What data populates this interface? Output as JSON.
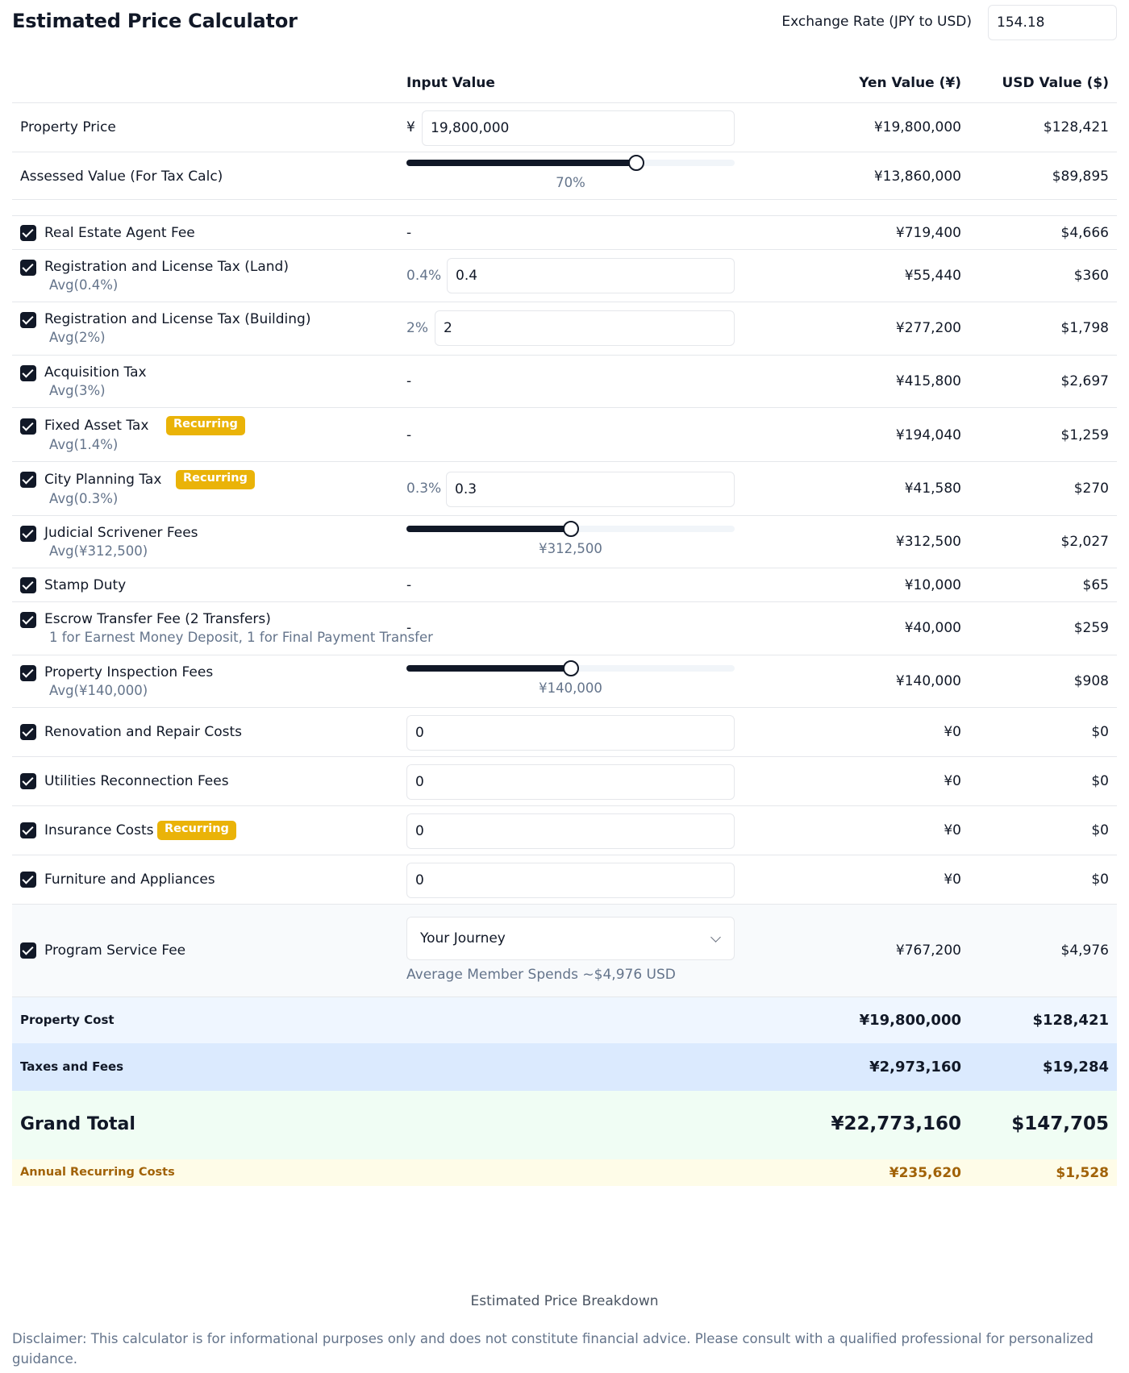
{
  "header": {
    "title": "Estimated Price Calculator",
    "exchange_label": "Exchange Rate (JPY to USD)",
    "exchange_value": "154.18"
  },
  "columns": {
    "input": "Input Value",
    "yen": "Yen Value (¥)",
    "usd": "USD Value ($)"
  },
  "property_price": {
    "label": "Property Price",
    "currency_symbol": "¥",
    "input_value": "19,800,000",
    "yen": "¥19,800,000",
    "usd": "$128,421"
  },
  "assessed_value": {
    "label": "Assessed Value (For Tax Calc)",
    "slider_value": 0.7,
    "slider_label": "70%",
    "yen": "¥13,860,000",
    "usd": "$89,895"
  },
  "badge_text": "Recurring",
  "dash": "-",
  "items": {
    "agent_fee": {
      "label": "Real Estate Agent Fee",
      "checked": true,
      "yen": "¥719,400",
      "usd": "$4,666"
    },
    "reg_land": {
      "label": "Registration and License Tax (Land)",
      "sub": "Avg(0.4%)",
      "checked": true,
      "pct": "0.4%",
      "input_value": "0.4",
      "yen": "¥55,440",
      "usd": "$360"
    },
    "reg_building": {
      "label": "Registration and License Tax (Building)",
      "sub": "Avg(2%)",
      "checked": true,
      "pct": "2%",
      "input_value": "2",
      "yen": "¥277,200",
      "usd": "$1,798"
    },
    "acquisition_tax": {
      "label": "Acquisition Tax",
      "sub": "Avg(3%)",
      "checked": true,
      "yen": "¥415,800",
      "usd": "$2,697"
    },
    "fixed_asset_tax": {
      "label": "Fixed Asset Tax",
      "sub": "Avg(1.4%)",
      "checked": true,
      "recurring": true,
      "yen": "¥194,040",
      "usd": "$1,259"
    },
    "city_planning_tax": {
      "label": "City Planning Tax",
      "sub": "Avg(0.3%)",
      "checked": true,
      "recurring": true,
      "pct": "0.3%",
      "input_value": "0.3",
      "yen": "¥41,580",
      "usd": "$270"
    },
    "scrivener": {
      "label": "Judicial Scrivener Fees",
      "sub": "Avg(¥312,500)",
      "checked": true,
      "slider_value": 0.5,
      "slider_label": "¥312,500",
      "yen": "¥312,500",
      "usd": "$2,027"
    },
    "stamp_duty": {
      "label": "Stamp Duty",
      "checked": true,
      "yen": "¥10,000",
      "usd": "$65"
    },
    "escrow": {
      "label": "Escrow Transfer Fee (2 Transfers)",
      "sub": "1 for Earnest Money Deposit, 1 for Final Payment Transfer",
      "checked": true,
      "yen": "¥40,000",
      "usd": "$259"
    },
    "inspection": {
      "label": "Property Inspection Fees",
      "sub": "Avg(¥140,000)",
      "checked": true,
      "slider_value": 0.5,
      "slider_label": "¥140,000",
      "yen": "¥140,000",
      "usd": "$908"
    },
    "renovation": {
      "label": "Renovation and Repair Costs",
      "checked": true,
      "input_value": "0",
      "yen": "¥0",
      "usd": "$0"
    },
    "utilities": {
      "label": "Utilities Reconnection Fees",
      "checked": true,
      "input_value": "0",
      "yen": "¥0",
      "usd": "$0"
    },
    "insurance": {
      "label": "Insurance Costs",
      "checked": true,
      "recurring": true,
      "input_value": "0",
      "yen": "¥0",
      "usd": "$0"
    },
    "furniture": {
      "label": "Furniture and Appliances",
      "checked": true,
      "input_value": "0",
      "yen": "¥0",
      "usd": "$0"
    },
    "program_fee": {
      "label": "Program Service Fee",
      "checked": true,
      "select_value": "Your Journey",
      "note": "Average Member Spends ~$4,976 USD",
      "yen": "¥767,200",
      "usd": "$4,976"
    }
  },
  "summary": {
    "property_cost": {
      "label": "Property Cost",
      "yen": "¥19,800,000",
      "usd": "$128,421"
    },
    "taxes_fees": {
      "label": "Taxes and Fees",
      "yen": "¥2,973,160",
      "usd": "$19,284"
    },
    "grand_total": {
      "label": "Grand Total",
      "yen": "¥22,773,160",
      "usd": "$147,705"
    },
    "annual_recurring": {
      "label": "Annual Recurring Costs",
      "yen": "¥235,620",
      "usd": "$1,528"
    }
  },
  "footer": {
    "caption": "Estimated Price Breakdown",
    "disclaimer": "Disclaimer: This calculator is for informational purposes only and does not constitute financial advice. Please consult with a qualified professional for personalized guidance."
  },
  "colors": {
    "accent_dark": "#111827",
    "badge": "#eab308",
    "property_cost_bg": "#eff6ff",
    "taxes_bg": "#dbeafe",
    "grand_total_bg": "#f0fdf4",
    "recurring_bg": "#fefce8",
    "recurring_text": "#a16207"
  }
}
